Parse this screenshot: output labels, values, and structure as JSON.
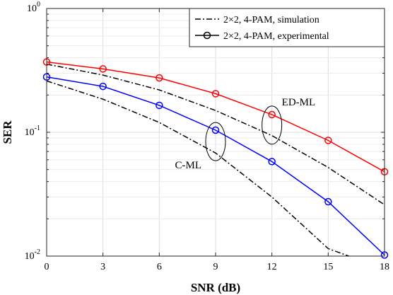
{
  "chart_data": {
    "type": "line",
    "xlabel": "SNR (dB)",
    "ylabel": "SER",
    "x": [
      0,
      3,
      6,
      9,
      12,
      15,
      18
    ],
    "xlim": [
      0,
      18
    ],
    "ylim": [
      0.01,
      1
    ],
    "yscale": "log",
    "grid": true,
    "legend_position": "top-right",
    "x_tick_labels": [
      "0",
      "3",
      "6",
      "9",
      "12",
      "15",
      "18"
    ],
    "y_tick_labels": [
      {
        "value": 1,
        "mantissa": "10",
        "exp": "0"
      },
      {
        "value": 0.1,
        "mantissa": "10",
        "exp": "-1"
      },
      {
        "value": 0.01,
        "mantissa": "10",
        "exp": "-2"
      }
    ],
    "legend": [
      {
        "label": "2×2, 4-PAM, simulation",
        "style": "dash-dot",
        "color": "#000000"
      },
      {
        "label": "2×2, 4-PAM, experimental",
        "style": "solid-circle",
        "color": "#000000"
      }
    ],
    "series": [
      {
        "group": "ED-ML",
        "kind": "simulation",
        "color": "#000000",
        "style": "dash-dot",
        "x": [
          0,
          3,
          6,
          9,
          12,
          15,
          18
        ],
        "values": [
          0.355,
          0.29,
          0.22,
          0.15,
          0.094,
          0.052,
          0.026
        ]
      },
      {
        "group": "ED-ML",
        "kind": "experimental",
        "color": "#ff0000",
        "style": "solid-circle",
        "x": [
          0,
          3,
          6,
          9,
          12,
          15,
          18
        ],
        "values": [
          0.37,
          0.325,
          0.275,
          0.205,
          0.139,
          0.086,
          0.048
        ]
      },
      {
        "group": "C-ML",
        "kind": "simulation",
        "color": "#000000",
        "style": "dash-dot",
        "x": [
          0,
          3,
          6,
          9,
          12,
          15,
          16.1
        ],
        "values": [
          0.26,
          0.185,
          0.12,
          0.068,
          0.03,
          0.0115,
          0.01
        ]
      },
      {
        "group": "C-ML",
        "kind": "experimental",
        "color": "#0000ff",
        "style": "solid-circle",
        "x": [
          0,
          3,
          6,
          9,
          12,
          15,
          18
        ],
        "values": [
          0.28,
          0.235,
          0.165,
          0.104,
          0.058,
          0.0275,
          0.0102
        ]
      }
    ],
    "annotations": [
      {
        "text": "ED-ML",
        "x": 12,
        "y": 0.14
      },
      {
        "text": "C-ML",
        "x": 9,
        "y": 0.104
      }
    ]
  }
}
